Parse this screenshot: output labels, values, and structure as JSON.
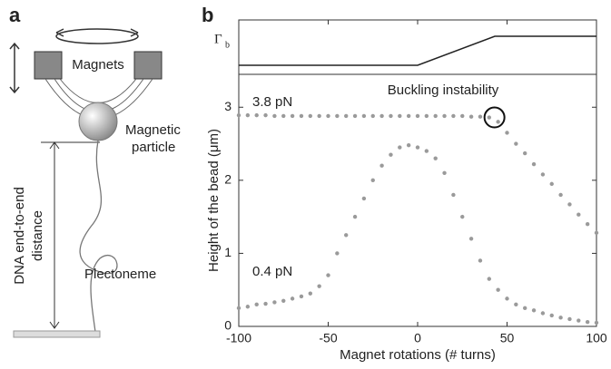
{
  "panel_labels": [
    "a",
    "b"
  ],
  "diagram": {
    "magnets": "Magnets",
    "particle": [
      "Magnetic",
      "particle"
    ],
    "distance": [
      "DNA end-to-end",
      "distance"
    ],
    "plectoneme": "Plectoneme"
  },
  "chart_data": {
    "type": "scatter",
    "inset_label": "Γ",
    "inset_subscript": "b",
    "annotation": "Buckling instability",
    "xlabel": "Magnet rotations (# turns)",
    "ylabel": "Height of the bead (μm)",
    "x": [
      -100,
      -95,
      -90,
      -85,
      -80,
      -75,
      -70,
      -65,
      -60,
      -55,
      -50,
      -45,
      -40,
      -35,
      -30,
      -25,
      -20,
      -15,
      -10,
      -5,
      0,
      5,
      10,
      15,
      20,
      25,
      30,
      35,
      40,
      45,
      50,
      55,
      60,
      65,
      70,
      75,
      80,
      85,
      90,
      95,
      100
    ],
    "series": [
      {
        "name": "3.8 pN",
        "color": "#9a9a9a",
        "values": [
          2.89,
          2.89,
          2.89,
          2.89,
          2.88,
          2.88,
          2.88,
          2.88,
          2.88,
          2.88,
          2.88,
          2.88,
          2.88,
          2.88,
          2.88,
          2.88,
          2.88,
          2.88,
          2.88,
          2.88,
          2.88,
          2.88,
          2.88,
          2.88,
          2.88,
          2.88,
          2.87,
          2.87,
          2.86,
          2.8,
          2.65,
          2.5,
          2.37,
          2.22,
          2.08,
          1.95,
          1.8,
          1.67,
          1.53,
          1.4,
          1.28
        ]
      },
      {
        "name": "0.4 pN",
        "color": "#9a9a9a",
        "values": [
          0.25,
          0.27,
          0.3,
          0.31,
          0.33,
          0.35,
          0.38,
          0.41,
          0.45,
          0.55,
          0.7,
          1.0,
          1.25,
          1.5,
          1.75,
          2.0,
          2.2,
          2.35,
          2.45,
          2.48,
          2.45,
          2.4,
          2.3,
          2.1,
          1.8,
          1.5,
          1.2,
          0.9,
          0.65,
          0.5,
          0.38,
          0.3,
          0.25,
          0.22,
          0.18,
          0.15,
          0.12,
          0.1,
          0.08,
          0.06,
          0.05
        ]
      }
    ],
    "xlim": [
      -100,
      100
    ],
    "ylim": [
      0,
      3.45
    ],
    "xticks": [
      -100,
      -50,
      0,
      50,
      100
    ],
    "yticks": [
      0,
      1,
      2,
      3
    ]
  }
}
